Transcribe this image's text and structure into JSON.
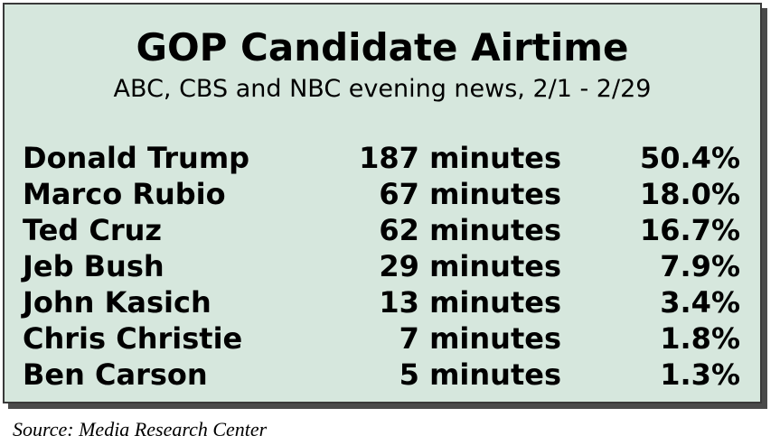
{
  "chart_data": {
    "type": "table",
    "title": "GOP Candidate Airtime",
    "subtitle": "ABC, CBS and NBC evening news, 2/1 - 2/29",
    "rows": [
      {
        "candidate": "Donald Trump",
        "minutes": "187 minutes",
        "percent": "50.4%"
      },
      {
        "candidate": "Marco Rubio",
        "minutes": "67 minutes",
        "percent": "18.0%"
      },
      {
        "candidate": "Ted Cruz",
        "minutes": "62 minutes",
        "percent": "16.7%"
      },
      {
        "candidate": "Jeb Bush",
        "minutes": "29 minutes",
        "percent": "7.9%"
      },
      {
        "candidate": "John Kasich",
        "minutes": "13 minutes",
        "percent": "3.4%"
      },
      {
        "candidate": "Chris Christie",
        "minutes": "7 minutes",
        "percent": "1.8%"
      },
      {
        "candidate": "Ben Carson",
        "minutes": "5 minutes",
        "percent": "1.3%"
      }
    ],
    "source": "Source: Media Research Center"
  },
  "colors": {
    "panel_background": "#d6e7dd",
    "border": "#3a3a3a",
    "shadow": "#4a4a4a",
    "text": "#000000"
  }
}
